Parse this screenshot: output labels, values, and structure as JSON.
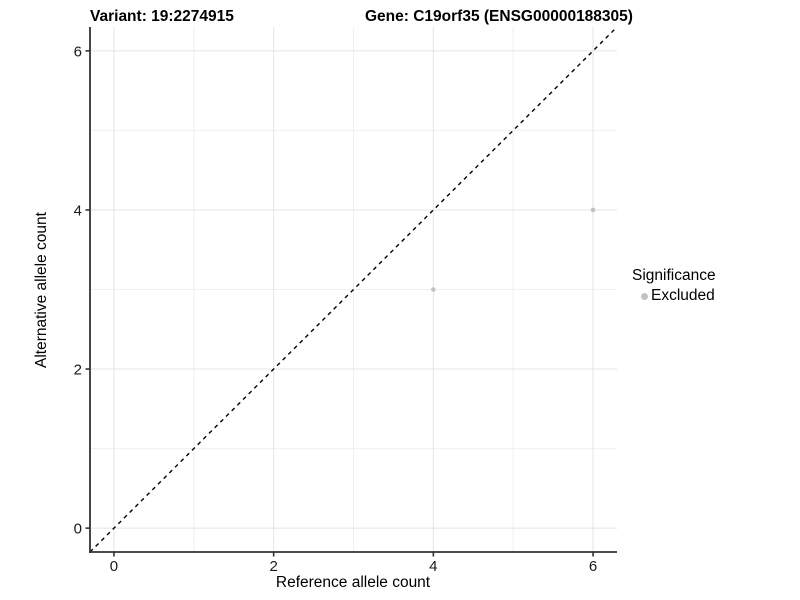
{
  "titles": {
    "variant": "Variant: 19:2274915",
    "gene": "Gene: C19orf35 (ENSG00000188305)"
  },
  "chart_data": {
    "type": "scatter",
    "title_left": "Variant: 19:2274915",
    "title_right": "Gene: C19orf35 (ENSG00000188305)",
    "xlabel": "Reference allele count",
    "ylabel": "Alternative allele count",
    "xlim": [
      -0.3,
      6.3
    ],
    "ylim": [
      -0.3,
      6.3
    ],
    "x_major_ticks": [
      0,
      2,
      4,
      6
    ],
    "y_major_ticks": [
      0,
      2,
      4,
      6
    ],
    "x_minor_ticks": [
      1,
      3,
      5
    ],
    "y_minor_ticks": [
      1,
      3,
      5
    ],
    "grid": true,
    "reference_line": {
      "kind": "identity",
      "style": "dashed",
      "color": "#000000"
    },
    "series": [
      {
        "name": "Excluded",
        "color": "#c2c2c2",
        "points": [
          {
            "x": 4,
            "y": 3
          },
          {
            "x": 6,
            "y": 4
          }
        ]
      }
    ],
    "legend": {
      "title": "Significance",
      "position": "right",
      "items": [
        {
          "label": "Excluded",
          "color": "#c2c2c2"
        }
      ]
    },
    "colors": {
      "grid_major": "#e4e4e4",
      "grid_minor": "#f0f0f0",
      "axis_line": "#333333",
      "tick_label": "#1a1a1a",
      "point": "#c2c2c2"
    }
  }
}
